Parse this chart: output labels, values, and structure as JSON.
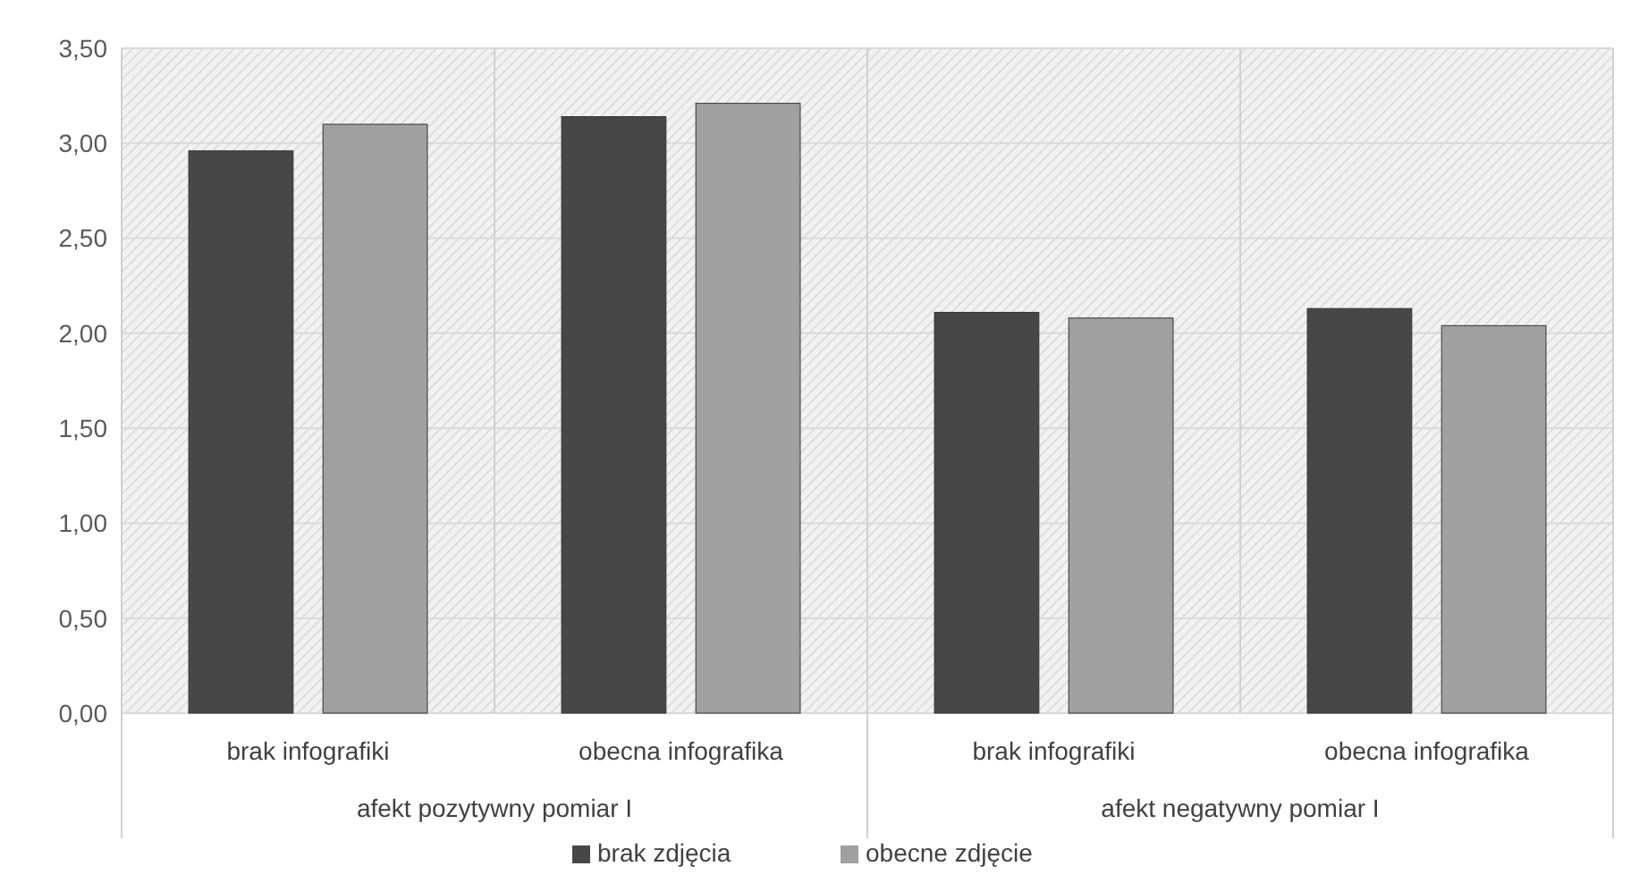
{
  "chart_data": {
    "type": "bar",
    "categories": [
      "brak infografiki",
      "obecna infografika",
      "brak infografiki",
      "obecna infografika"
    ],
    "series": [
      {
        "name": "brak zdjęcia",
        "color": "#474747",
        "values": [
          2.96,
          3.14,
          2.11,
          2.13
        ]
      },
      {
        "name": "obecne zdjęcie",
        "color": "#a0a0a0",
        "values": [
          3.1,
          3.21,
          2.08,
          2.04
        ]
      }
    ],
    "annotations": [
      "afekt pozytywny pomiar I",
      "afekt negatywny pomiar I"
    ],
    "ylim": [
      0,
      3.5
    ],
    "yticks": [
      {
        "value": 0,
        "label": "0,00"
      },
      {
        "value": 0.5,
        "label": "0,50"
      },
      {
        "value": 1,
        "label": "1,00"
      },
      {
        "value": 1.5,
        "label": "1,50"
      },
      {
        "value": 2,
        "label": "2,00"
      },
      {
        "value": 2.5,
        "label": "2,50"
      },
      {
        "value": 3,
        "label": "3,00"
      },
      {
        "value": 3.5,
        "label": "3,50"
      }
    ],
    "grid": "y",
    "legend": "bottom"
  }
}
